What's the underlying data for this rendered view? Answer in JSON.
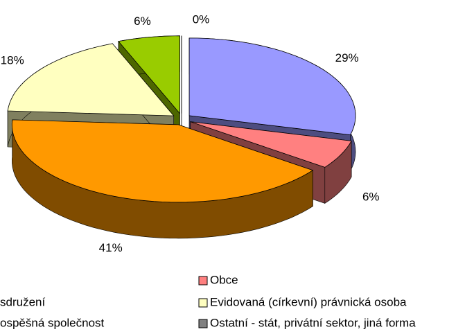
{
  "chart_data": {
    "type": "pie3d",
    "categories": [
      null,
      "Obce",
      "sdružení",
      "Evidovaná (církevní) právnická osoba",
      "ospěšná společnost",
      "Ostatní - stát, privátní sektor, jiná forma"
    ],
    "values": [
      29,
      6,
      41,
      18,
      6,
      0
    ],
    "value_labels": [
      "29%",
      "6%",
      "41%",
      "18%",
      "6%",
      "0%"
    ],
    "colors": [
      "#9999ff",
      "#ff8080",
      "#ff9900",
      "#ffffc0",
      "#99cc00",
      "#808080"
    ],
    "side_colors": [
      "#4d4d80",
      "#804040",
      "#804c00",
      "#80805f",
      "#4d6600",
      "#404040"
    ]
  }
}
